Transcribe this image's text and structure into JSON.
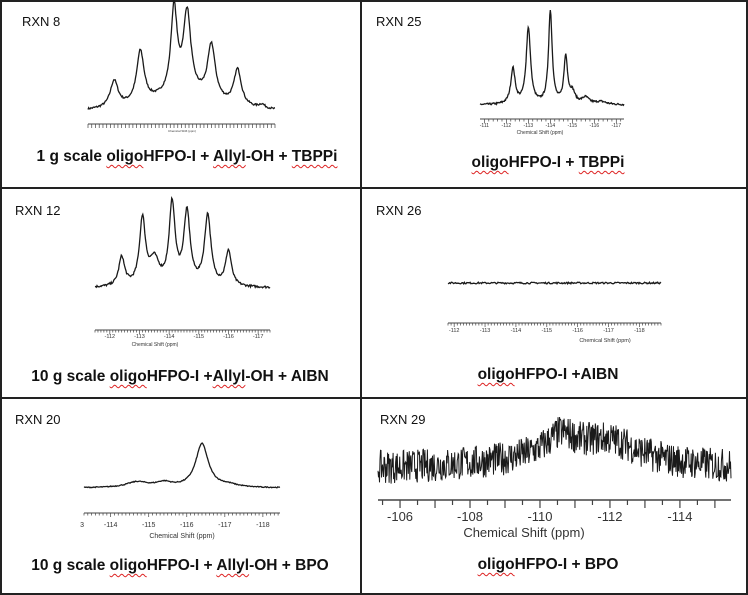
{
  "colors": {
    "trace": "#1a1a1a",
    "axis": "#444",
    "border": "#222",
    "spellcheck": "#dd2222"
  },
  "chart_data": [
    {
      "type": "line",
      "label": "RXN 8",
      "caption": [
        {
          "text": "1 g scale "
        },
        {
          "text": "oligo",
          "spell": true
        },
        {
          "text": "HFPO-I + "
        },
        {
          "text": "Allyl",
          "spell": true
        },
        {
          "text": "-OH + "
        },
        {
          "text": "TBPPi",
          "spell": true
        }
      ],
      "xlabel": "Chemical Shift (ppm)",
      "xlim": [
        0,
        100
      ],
      "tick_labels": [],
      "peaks": [
        [
          14,
          0.28,
          2.5
        ],
        [
          28,
          0.55,
          2.4
        ],
        [
          46,
          0.9,
          2.0
        ],
        [
          53,
          0.85,
          2.4
        ],
        [
          66,
          0.58,
          2.5
        ],
        [
          80,
          0.38,
          2.4
        ],
        [
          93,
          0.04,
          2
        ],
        [
          50,
          0.18,
          22
        ]
      ],
      "noise": 0.01
    },
    {
      "type": "line",
      "label": "RXN 25",
      "caption": [
        {
          "text": "oligo",
          "spell": true
        },
        {
          "text": "HFPO-I + "
        },
        {
          "text": "TBPPi",
          "spell": true
        }
      ],
      "xlabel": "Chemical Shift (ppm)",
      "xlim": [
        -110.8,
        -117.35
      ],
      "tick_labels": [
        -111,
        -112,
        -113,
        -114,
        -115,
        -116,
        -117
      ],
      "peaks": [
        [
          -112.3,
          0.38,
          0.12
        ],
        [
          -113.0,
          0.82,
          0.12
        ],
        [
          -114.0,
          1.0,
          0.1
        ],
        [
          -114.7,
          0.5,
          0.1
        ],
        [
          -115.0,
          0.12,
          0.15
        ],
        [
          -115.6,
          0.07,
          0.2
        ],
        [
          -116.3,
          0.03,
          0.3
        ]
      ],
      "noise": 0.01
    },
    {
      "type": "line",
      "label": "RXN 12",
      "caption": [
        {
          "text": "10 g scale "
        },
        {
          "text": "oligo",
          "spell": true
        },
        {
          "text": "HFPO-I +"
        },
        {
          "text": "Allyl",
          "spell": true
        },
        {
          "text": "-OH + AIBN"
        }
      ],
      "xlabel": "Chemical Shift (ppm)",
      "xlim": [
        -111.5,
        -117.4
      ],
      "tick_labels": [
        -112,
        -113,
        -114,
        -115,
        -116,
        -117
      ],
      "peaks": [
        [
          -112.4,
          0.33,
          0.12
        ],
        [
          -113.1,
          0.75,
          0.12
        ],
        [
          -113.5,
          0.28,
          0.2
        ],
        [
          -114.1,
          0.92,
          0.12
        ],
        [
          -114.6,
          0.82,
          0.13
        ],
        [
          -115.3,
          0.8,
          0.13
        ],
        [
          -116.0,
          0.4,
          0.12
        ]
      ],
      "noise": 0.012
    },
    {
      "type": "line",
      "label": "RXN 26",
      "caption": [
        {
          "text": "oligo",
          "spell": true
        },
        {
          "text": "HFPO-I +AIBN"
        }
      ],
      "xlabel": "Chemical Shift (ppm)",
      "xlim": [
        -111.8,
        -118.7
      ],
      "tick_labels": [
        -112,
        -113,
        -114,
        -115,
        -116,
        -117,
        -118
      ],
      "peaks": [],
      "noise": 0.01
    },
    {
      "type": "line",
      "label": "RXN 20",
      "caption": [
        {
          "text": "10 g scale "
        },
        {
          "text": "oligo",
          "spell": true
        },
        {
          "text": "HFPO-I + "
        },
        {
          "text": "Allyl",
          "spell": true
        },
        {
          "text": "-OH + BPO"
        }
      ],
      "xlabel": "Chemical Shift (ppm)",
      "xlim": [
        -113.3,
        -118.45
      ],
      "tick_labels": [
        "3",
        -114,
        -115,
        -116,
        -117,
        -118
      ],
      "peaks": [
        [
          -114.7,
          0.12,
          0.35
        ],
        [
          -115.4,
          0.1,
          0.25
        ],
        [
          -116.4,
          0.95,
          0.2
        ],
        [
          -117.1,
          0.05,
          0.3
        ]
      ],
      "noise": 0.01
    },
    {
      "type": "line",
      "label": "RXN 29",
      "caption": [
        {
          "text": "oligo",
          "spell": true
        },
        {
          "text": "HFPO-I + BPO"
        }
      ],
      "xlabel": "Chemical Shift (ppm)",
      "xlim": [
        -105.37,
        -115.46
      ],
      "tick_labels": [
        -106,
        -108,
        -110,
        -112,
        -114
      ],
      "peaks": [
        [
          -110.6,
          0.45,
          0.5
        ],
        [
          -112.0,
          0.45,
          1.0
        ],
        [
          -110.8,
          0.3,
          2.5
        ]
      ],
      "noise": 0.4
    }
  ]
}
